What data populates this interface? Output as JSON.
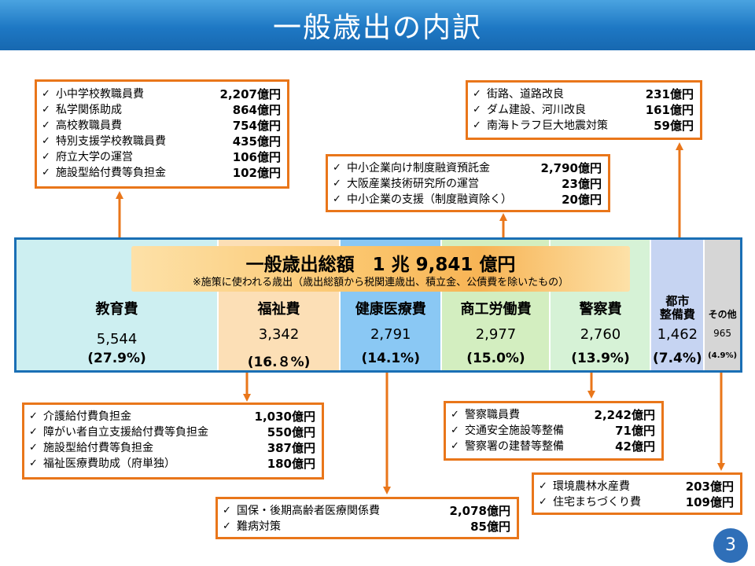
{
  "title": "一般歳出の内訳",
  "total": {
    "label": "一般歳出総額　1 兆 9,841 億円",
    "note": "※施策に使われる歳出（歳出総額から税関連歳出、積立金、公債費を除いたもの）"
  },
  "chart_data": {
    "type": "bar",
    "orientation": "horizontal-stacked",
    "title": "一般歳出総額　1 兆 9,841 億円",
    "categories": [
      "教育費",
      "福祉費",
      "健康医療費",
      "商工労働費",
      "警察費",
      "都市整備費",
      "その他"
    ],
    "values": [
      5544,
      3342,
      2791,
      2977,
      2760,
      1462,
      965
    ],
    "value_labels": [
      "5,544",
      "3,342",
      "2,791",
      "2,977",
      "2,760",
      "1,462",
      "965"
    ],
    "percent_labels": [
      "(27.9%)",
      "(16.８%)",
      "(14.1%)",
      "(15.0%)",
      "(13.9%)",
      "(7.4%)",
      "(4.9%)"
    ],
    "colors": [
      "#cdeff1",
      "#fcdfb6",
      "#8ac8f4",
      "#d3eec0",
      "#d6f2d6",
      "#c6d4f2",
      "#d6d6d6"
    ]
  },
  "segments": [
    {
      "name": "教育費",
      "value": "5,544",
      "pct": "(27.9%)"
    },
    {
      "name": "福祉費",
      "value": "3,342",
      "pct": "(16.８%)"
    },
    {
      "name": "健康医療費",
      "value": "2,791",
      "pct": "(14.1%)"
    },
    {
      "name": "商工労働費",
      "value": "2,977",
      "pct": "(15.0%)"
    },
    {
      "name": "警察費",
      "value": "2,760",
      "pct": "(13.9%)"
    },
    {
      "name": "都市\n整備費",
      "value": "1,462",
      "pct": "(7.4%)"
    },
    {
      "name": "その他",
      "value": "965",
      "pct": "(4.9%)"
    }
  ],
  "boxes": {
    "education": [
      {
        "label": "小中学校教職員費",
        "amount": "2,207億円"
      },
      {
        "label": "私学関係助成",
        "amount": "864億円"
      },
      {
        "label": "高校教職員費",
        "amount": "754億円"
      },
      {
        "label": "特別支援学校教職員費",
        "amount": "435億円"
      },
      {
        "label": "府立大学の運営",
        "amount": "106億円"
      },
      {
        "label": "施設型給付費等負担金",
        "amount": "102億円"
      }
    ],
    "commerce": [
      {
        "label": "中小企業向け制度融資預託金",
        "amount": "2,790億円"
      },
      {
        "label": "大阪産業技術研究所の運営",
        "amount": "23億円"
      },
      {
        "label": "中小企業の支援（制度融資除く）",
        "amount": "20億円"
      }
    ],
    "urban": [
      {
        "label": "街路、道路改良",
        "amount": "231億円"
      },
      {
        "label": "ダム建設、河川改良",
        "amount": "161億円"
      },
      {
        "label": "南海トラフ巨大地震対策",
        "amount": "59億円"
      }
    ],
    "welfare": [
      {
        "label": "介護給付費負担金",
        "amount": "1,030億円"
      },
      {
        "label": "障がい者自立支援給付費等負担金",
        "amount": "550億円"
      },
      {
        "label": "施設型給付費等負担金",
        "amount": "387億円"
      },
      {
        "label": "福祉医療費助成（府単独）",
        "amount": "180億円"
      }
    ],
    "health": [
      {
        "label": "国保・後期高齢者医療関係費",
        "amount": "2,078億円"
      },
      {
        "label": "難病対策",
        "amount": "85億円"
      }
    ],
    "police": [
      {
        "label": "警察職員費",
        "amount": "2,242億円"
      },
      {
        "label": "交通安全施設等整備",
        "amount": "71億円"
      },
      {
        "label": "警察署の建替等整備",
        "amount": "42億円"
      }
    ],
    "other": [
      {
        "label": "環境農林水産費",
        "amount": "203億円"
      },
      {
        "label": "住宅まちづくり費",
        "amount": "109億円"
      }
    ]
  },
  "check_mark": "✓",
  "page_number": "3"
}
